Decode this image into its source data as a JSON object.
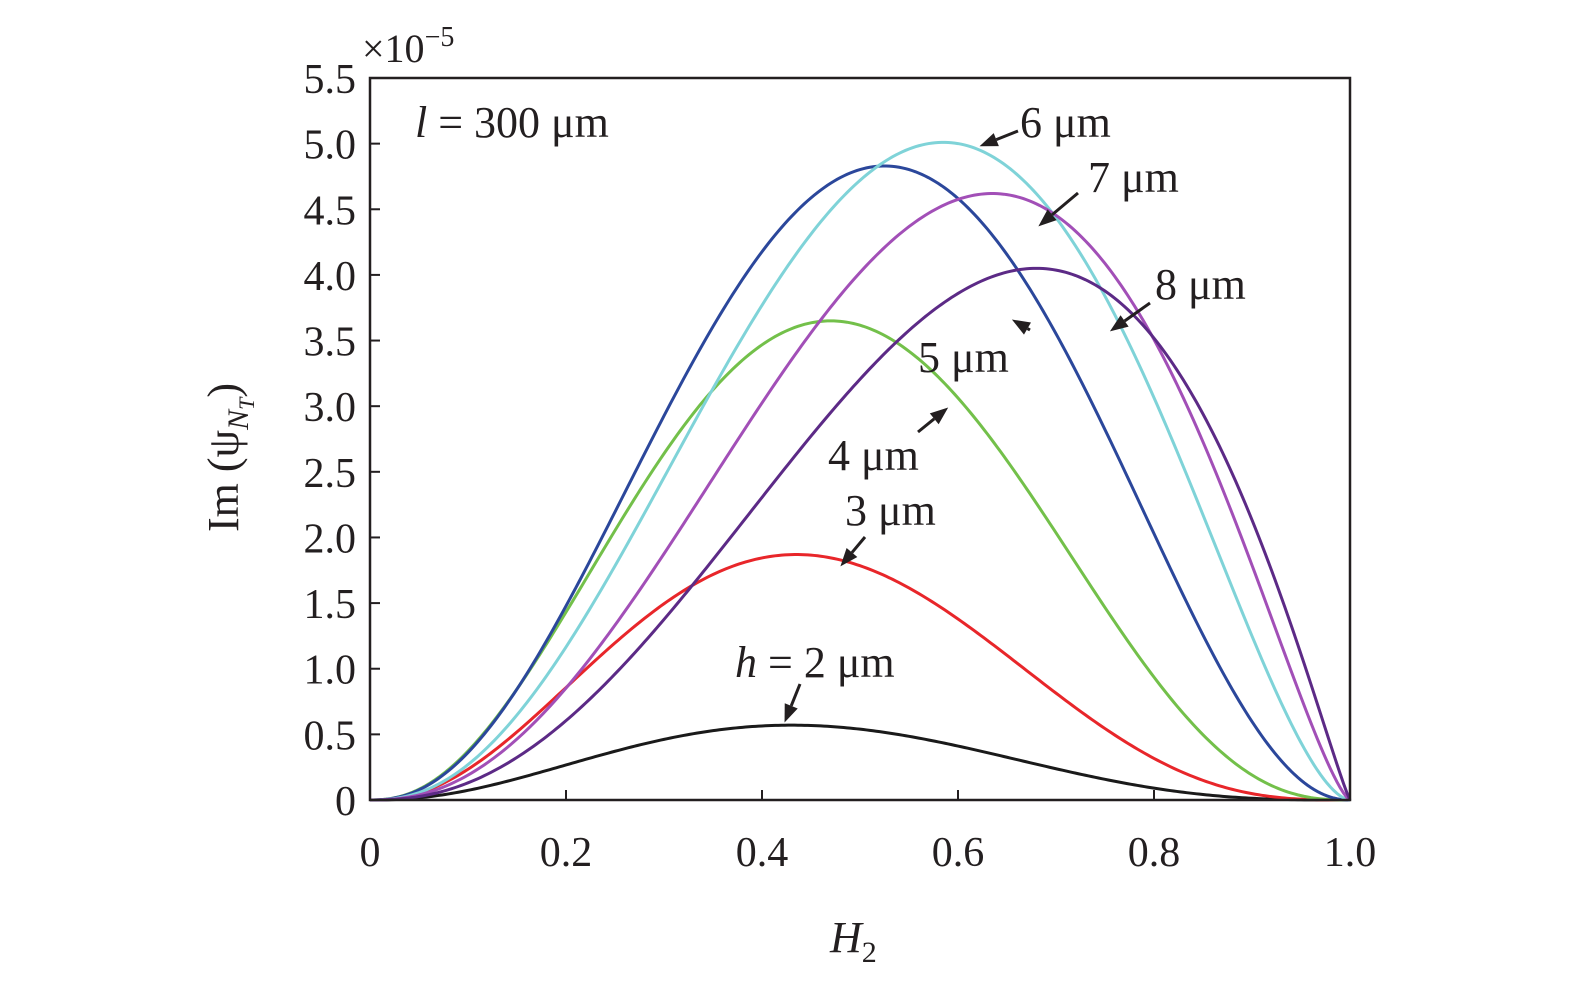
{
  "chart_data": {
    "type": "line",
    "xlabel": "H",
    "xlabel_sub": "2",
    "ylabel": "Im (ψ",
    "ylabel_sub1": "N",
    "ylabel_sub2": "T",
    "ylabel_close": ")",
    "y_multiplier": "×10",
    "y_multiplier_exp": "−5",
    "xlim": [
      0,
      1.0
    ],
    "ylim": [
      0,
      5.5
    ],
    "x_ticks": [
      "0",
      "0.2",
      "0.4",
      "0.6",
      "0.8",
      "1.0"
    ],
    "x_tick_values": [
      0,
      0.2,
      0.4,
      0.6,
      0.8,
      1.0
    ],
    "y_ticks": [
      "0",
      "0.5",
      "1.0",
      "1.5",
      "2.0",
      "2.5",
      "3.0",
      "3.5",
      "4.0",
      "4.5",
      "5.0",
      "5.5"
    ],
    "y_tick_values": [
      0,
      0.5,
      1.0,
      1.5,
      2.0,
      2.5,
      3.0,
      3.5,
      4.0,
      4.5,
      5.0,
      5.5
    ],
    "grid": false,
    "parameter_note": {
      "var": "l",
      "text": " = 300 μm"
    },
    "series": [
      {
        "label": "h = 2 μm",
        "color": "#1a1a1a",
        "peak_x": 0.43,
        "peak_y": 0.57
      },
      {
        "label": "3 μm",
        "color": "#e8262a",
        "peak_x": 0.435,
        "peak_y": 1.87
      },
      {
        "label": "4 μm",
        "color": "#73c04a",
        "peak_x": 0.47,
        "peak_y": 3.65
      },
      {
        "label": "5 μm",
        "color": "#2b479b",
        "peak_x": 0.525,
        "peak_y": 4.83
      },
      {
        "label": "6 μm",
        "color": "#7fd3d8",
        "peak_x": 0.585,
        "peak_y": 5.01
      },
      {
        "label": "7 μm",
        "color": "#a24fb7",
        "peak_x": 0.635,
        "peak_y": 4.62
      },
      {
        "label": "8 μm",
        "color": "#5c2a86",
        "peak_x": 0.68,
        "peak_y": 4.05
      }
    ],
    "annotations": [
      {
        "series": 0,
        "prefix": "h",
        "text": " = 2 μm",
        "point": [
          0.423,
          0.59
        ]
      },
      {
        "series": 1,
        "prefix": "",
        "text": "3 μm",
        "point": [
          0.48,
          1.78
        ]
      },
      {
        "series": 2,
        "prefix": "",
        "text": "4 μm",
        "point": [
          0.59,
          2.99
        ]
      },
      {
        "series": 3,
        "prefix": "",
        "text": "5 μm",
        "point": [
          0.655,
          3.66
        ]
      },
      {
        "series": 4,
        "prefix": "",
        "text": "6 μm",
        "point": [
          0.622,
          4.98
        ]
      },
      {
        "series": 5,
        "prefix": "",
        "text": "7 μm",
        "point": [
          0.682,
          4.37
        ]
      },
      {
        "series": 6,
        "prefix": "",
        "text": "8 μm",
        "point": [
          0.755,
          3.57
        ]
      }
    ]
  }
}
